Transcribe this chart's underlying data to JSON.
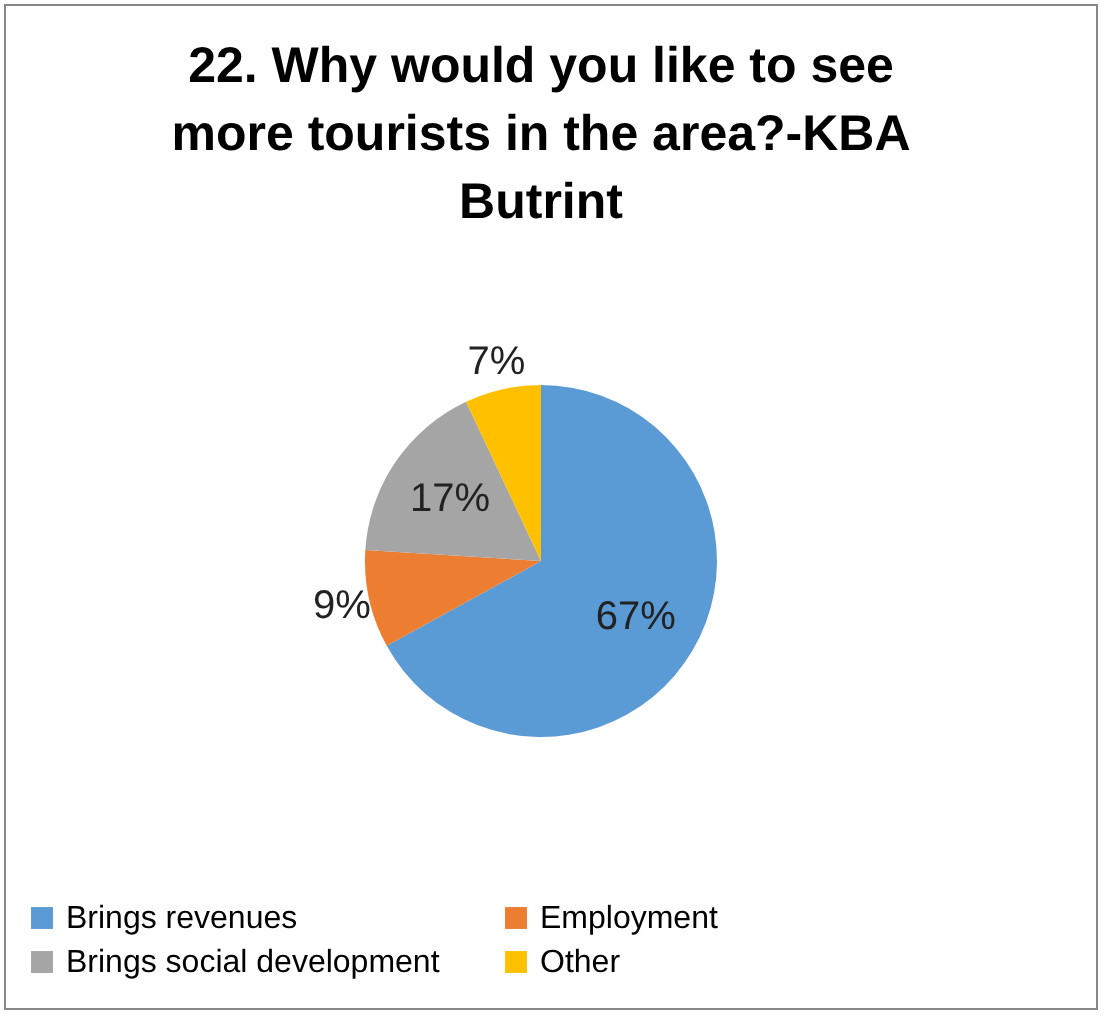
{
  "chart_data": {
    "type": "pie",
    "title": "22. Why would you like to see more tourists in the area?-KBA Butrint",
    "categories": [
      "Brings revenues",
      "Employment",
      "Brings social development",
      "Other"
    ],
    "values": [
      67,
      9,
      17,
      7
    ],
    "colors": [
      "#5b9bd5",
      "#ed7d31",
      "#a5a5a5",
      "#ffc000"
    ],
    "value_labels": [
      "67%",
      "9%",
      "17%",
      "7%"
    ],
    "legend": "bottom"
  }
}
